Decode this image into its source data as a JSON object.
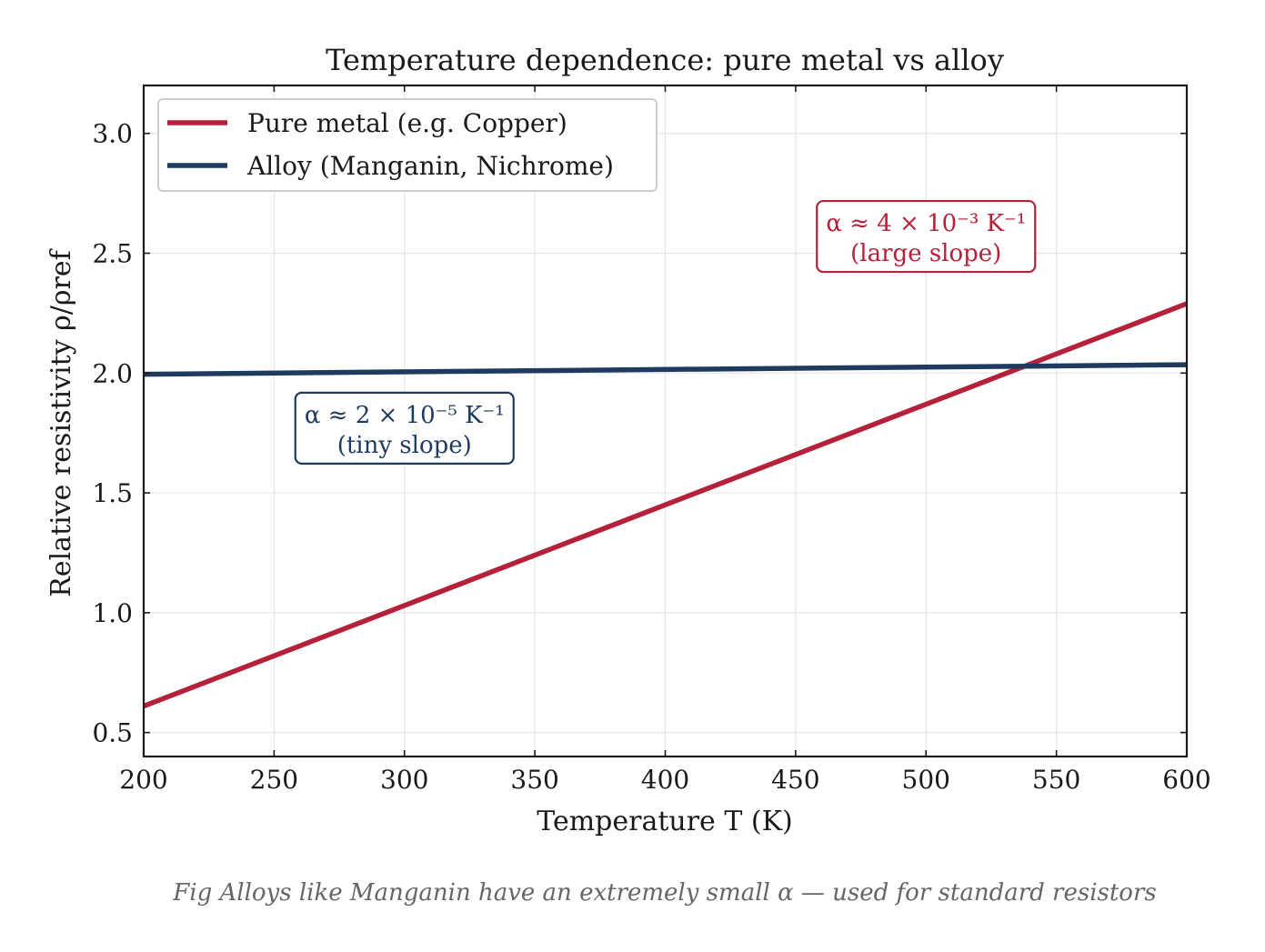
{
  "chart_data": {
    "type": "line",
    "title": "Temperature dependence: pure metal vs alloy",
    "xlabel": "Temperature T (K)",
    "ylabel": "Relative resistivity ρ/ρref",
    "xlim": [
      200,
      600
    ],
    "ylim": [
      0.4,
      3.2
    ],
    "xticks": [
      200,
      250,
      300,
      350,
      400,
      450,
      500,
      550,
      600
    ],
    "xtick_labels": [
      "200",
      "250",
      "300",
      "350",
      "400",
      "450",
      "500",
      "550",
      "600"
    ],
    "yticks": [
      0.5,
      1.0,
      1.5,
      2.0,
      2.5,
      3.0
    ],
    "ytick_labels": [
      "0.5",
      "1.0",
      "1.5",
      "2.0",
      "2.5",
      "3.0"
    ],
    "grid": true,
    "legend_position": "top-left",
    "series": [
      {
        "name": "Pure metal (e.g. Copper)",
        "color": "#b5213a",
        "x": [
          200,
          600
        ],
        "y": [
          0.61,
          2.29
        ]
      },
      {
        "name": "Alloy (Manganin, Nichrome)",
        "color": "#1e3a5f",
        "x": [
          200,
          600
        ],
        "y": [
          1.995,
          2.035
        ]
      }
    ],
    "annotations": [
      {
        "text": "α ≈ 4 × 10⁻³ K⁻¹",
        "text2": "(large slope)",
        "color": "#b5213a",
        "x": 500,
        "y": 2.57
      },
      {
        "text": "α ≈ 2 × 10⁻⁵ K⁻¹",
        "text2": "(tiny slope)",
        "color": "#1e3a5f",
        "x": 300,
        "y": 1.77
      }
    ]
  },
  "caption": "Fig  Alloys like Manganin have an extremely small α — used for standard resistors"
}
